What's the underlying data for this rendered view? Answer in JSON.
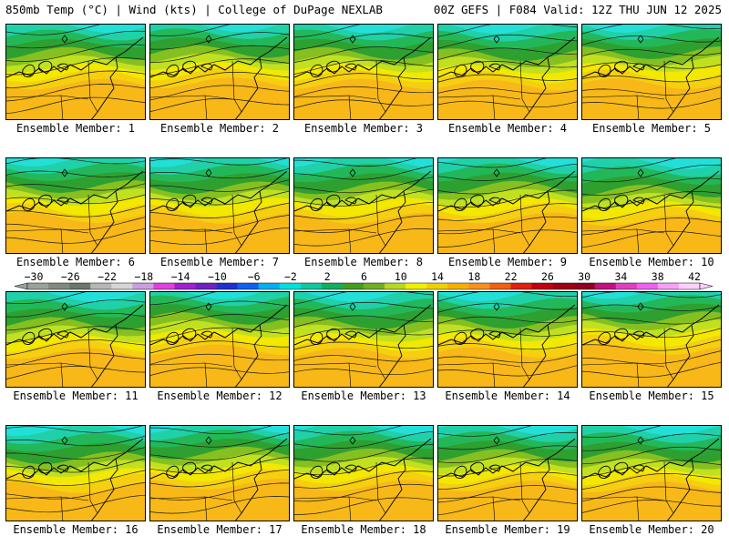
{
  "header": {
    "left": "850mb Temp (°C) | Wind (kts) | College of DuPage NEXLAB",
    "right": "00Z GEFS | F084 Valid: 12Z THU JUN 12 2025"
  },
  "panels": [
    {
      "label": "Ensemble Member: 1",
      "cool": 0.55
    },
    {
      "label": "Ensemble Member: 2",
      "cool": 0.4
    },
    {
      "label": "Ensemble Member: 3",
      "cool": 0.55
    },
    {
      "label": "Ensemble Member: 4",
      "cool": 0.65
    },
    {
      "label": "Ensemble Member: 5",
      "cool": 0.5
    },
    {
      "label": "Ensemble Member: 6",
      "cool": 0.5
    },
    {
      "label": "Ensemble Member: 7",
      "cool": 0.6
    },
    {
      "label": "Ensemble Member: 8",
      "cool": 0.6
    },
    {
      "label": "Ensemble Member: 9",
      "cool": 0.55
    },
    {
      "label": "Ensemble Member: 10",
      "cool": 0.85
    },
    {
      "label": "Ensemble Member: 11",
      "cool": 0.75
    },
    {
      "label": "Ensemble Member: 12",
      "cool": 0.35
    },
    {
      "label": "Ensemble Member: 13",
      "cool": 0.7
    },
    {
      "label": "Ensemble Member: 14",
      "cool": 0.65
    },
    {
      "label": "Ensemble Member: 15",
      "cool": 0.3
    },
    {
      "label": "Ensemble Member: 16",
      "cool": 0.8
    },
    {
      "label": "Ensemble Member: 17",
      "cool": 0.4
    },
    {
      "label": "Ensemble Member: 18",
      "cool": 0.55
    },
    {
      "label": "Ensemble Member: 19",
      "cool": 0.6
    },
    {
      "label": "Ensemble Member: 20",
      "cool": 0.7
    }
  ],
  "scale": {
    "ticks": [
      "−30",
      "−26",
      "−22",
      "−18",
      "−14",
      "−10",
      "−6",
      "−2",
      "2",
      "6",
      "10",
      "14",
      "18",
      "22",
      "26",
      "30",
      "34",
      "38",
      "42"
    ],
    "colors": [
      "#9aa39a",
      "#808a80",
      "#6c766c",
      "#b6b6b6",
      "#d6d6d6",
      "#c8a0e0",
      "#e040e0",
      "#a020d0",
      "#7020c0",
      "#2030d0",
      "#1060f0",
      "#00b0f0",
      "#00e0e0",
      "#10c8a0",
      "#10b060",
      "#40a020",
      "#70b020",
      "#b8d820",
      "#f0f000",
      "#f0d000",
      "#f8b000",
      "#f89020",
      "#f06010",
      "#e02010",
      "#c00010",
      "#a00010",
      "#900020",
      "#c01080",
      "#e040c0",
      "#f060f0",
      "#f8a0f8",
      "#ffd0ff"
    ],
    "temp_colors": {
      "cyan": "#22e0d8",
      "teal": "#20d0a8",
      "green1": "#22b85a",
      "green2": "#2ea030",
      "olive": "#86c020",
      "yellowgreen": "#c0e020",
      "yellow": "#f2e800",
      "gold": "#f5cf10",
      "orange": "#f7b818"
    }
  }
}
